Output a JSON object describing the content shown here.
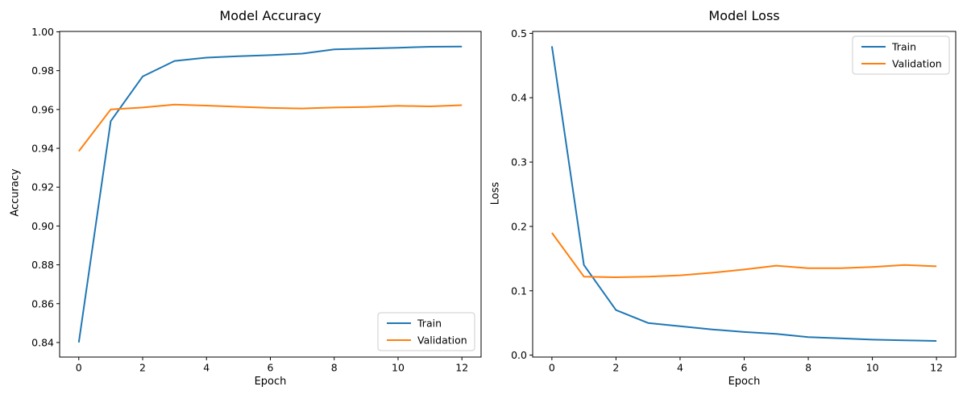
{
  "figure": {
    "background": "#ffffff",
    "text_color": "#000000",
    "spine_color": "#000000",
    "legend_border_color": "#cccccc",
    "legend_fill": "rgba(255,255,255,0.8)"
  },
  "chart_data": [
    {
      "type": "line",
      "title": "Model Accuracy",
      "xlabel": "Epoch",
      "ylabel": "Accuracy",
      "x": [
        0,
        1,
        2,
        3,
        4,
        5,
        6,
        7,
        8,
        9,
        10,
        11,
        12
      ],
      "series": [
        {
          "name": "Train",
          "color": "#1f77b4",
          "values": [
            0.84,
            0.954,
            0.977,
            0.985,
            0.9867,
            0.9874,
            0.988,
            0.9888,
            0.991,
            0.9914,
            0.9918,
            0.9923,
            0.9924
          ]
        },
        {
          "name": "Validation",
          "color": "#ff7f0e",
          "values": [
            0.9385,
            0.96,
            0.961,
            0.9625,
            0.962,
            0.9614,
            0.9608,
            0.9605,
            0.961,
            0.9613,
            0.9619,
            0.9616,
            0.9622
          ]
        }
      ],
      "xlim": [
        -0.6,
        12.6
      ],
      "ylim": [
        0.8325,
        1.0002
      ],
      "xticks": {
        "values": [
          0,
          2,
          4,
          6,
          8,
          10,
          12
        ],
        "labels": [
          "0",
          "2",
          "4",
          "6",
          "8",
          "10",
          "12"
        ]
      },
      "yticks": {
        "values": [
          0.84,
          0.86,
          0.88,
          0.9,
          0.92,
          0.94,
          0.96,
          0.98,
          1.0
        ],
        "labels": [
          "0.84",
          "0.86",
          "0.88",
          "0.90",
          "0.92",
          "0.94",
          "0.96",
          "0.98",
          "1.00"
        ]
      },
      "legend": {
        "position": "lower right",
        "entries": [
          "Train",
          "Validation"
        ]
      },
      "grid": false
    },
    {
      "type": "line",
      "title": "Model Loss",
      "xlabel": "Epoch",
      "ylabel": "Loss",
      "x": [
        0,
        1,
        2,
        3,
        4,
        5,
        6,
        7,
        8,
        9,
        10,
        11,
        12
      ],
      "series": [
        {
          "name": "Train",
          "color": "#1f77b4",
          "values": [
            0.48,
            0.14,
            0.07,
            0.05,
            0.045,
            0.04,
            0.036,
            0.033,
            0.028,
            0.026,
            0.024,
            0.023,
            0.022
          ]
        },
        {
          "name": "Validation",
          "color": "#ff7f0e",
          "values": [
            0.19,
            0.122,
            0.121,
            0.122,
            0.124,
            0.128,
            0.133,
            0.139,
            0.135,
            0.135,
            0.137,
            0.14,
            0.138
          ]
        }
      ],
      "xlim": [
        -0.6,
        12.6
      ],
      "ylim": [
        -0.003,
        0.503
      ],
      "xticks": {
        "values": [
          0,
          2,
          4,
          6,
          8,
          10,
          12
        ],
        "labels": [
          "0",
          "2",
          "4",
          "6",
          "8",
          "10",
          "12"
        ]
      },
      "yticks": {
        "values": [
          0.0,
          0.1,
          0.2,
          0.3,
          0.4,
          0.5
        ],
        "labels": [
          "0.0",
          "0.1",
          "0.2",
          "0.3",
          "0.4",
          "0.5"
        ]
      },
      "legend": {
        "position": "upper right",
        "entries": [
          "Train",
          "Validation"
        ]
      },
      "grid": false
    }
  ]
}
